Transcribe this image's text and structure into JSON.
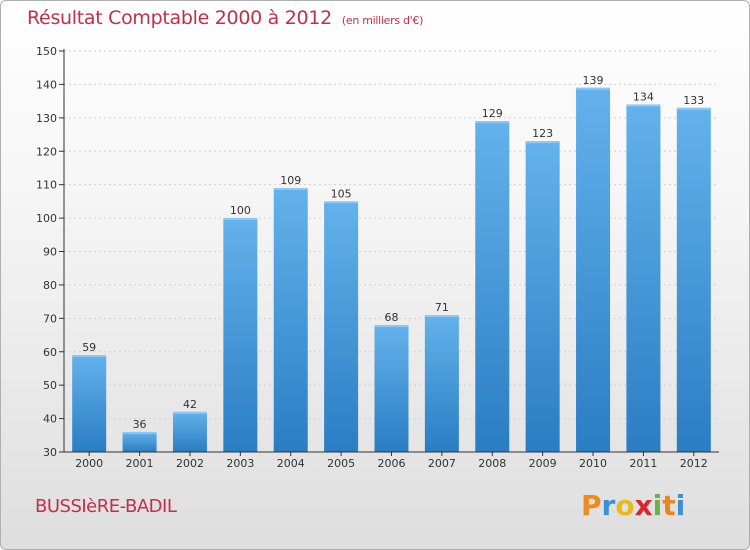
{
  "colors": {
    "title": "#c0304a",
    "bar_top": "#63b2ec",
    "bar_bottom": "#2b7dc3",
    "axis": "#333333",
    "grid": "#d0d0d0"
  },
  "header": {
    "title": "Résultat Comptable 2000 à 2012",
    "subtitle": "(en milliers d'€)"
  },
  "footer": {
    "commune": "BUSSIèRE-BADIL",
    "logo_letters": [
      "P",
      "r",
      "o",
      "x",
      "i",
      "t",
      "i"
    ],
    "logo_colors": [
      "#f08a1c",
      "#3b8fd6",
      "#e8b81c",
      "#d8262c",
      "#6ab04c",
      "#e8861c",
      "#3b8fd6"
    ]
  },
  "chart_data": {
    "type": "bar",
    "title": "Résultat Comptable 2000 à 2012",
    "subtitle": "(en milliers d'€)",
    "xlabel": "",
    "ylabel": "",
    "categories": [
      "2000",
      "2001",
      "2002",
      "2003",
      "2004",
      "2005",
      "2006",
      "2007",
      "2008",
      "2009",
      "2010",
      "2011",
      "2012"
    ],
    "values": [
      59,
      36,
      42,
      100,
      109,
      105,
      68,
      71,
      129,
      123,
      139,
      134,
      133
    ],
    "ylim": [
      30,
      150
    ],
    "yticks": [
      30,
      40,
      50,
      60,
      70,
      80,
      90,
      100,
      110,
      120,
      130,
      140,
      150
    ],
    "grid": true
  }
}
